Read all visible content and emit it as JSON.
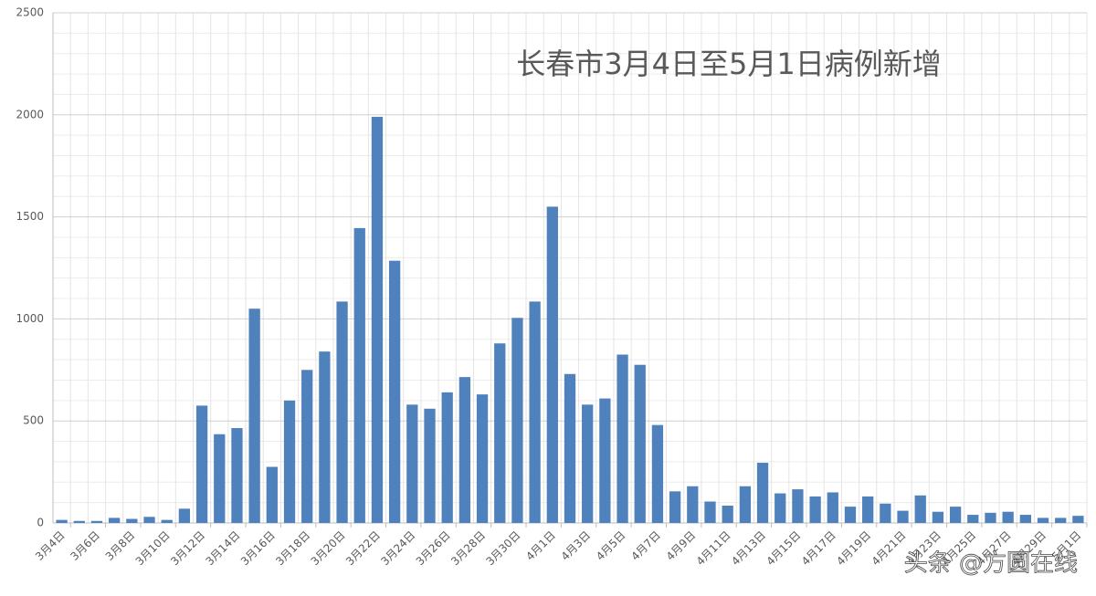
{
  "chart_data": {
    "type": "bar",
    "title": "长春市3月4日至5月1日病例新增",
    "watermark": "头条 @方圆在线",
    "categories": [
      "3月4日",
      null,
      "3月6日",
      null,
      "3月8日",
      null,
      "3月10日",
      null,
      "3月12日",
      null,
      "3月14日",
      null,
      "3月16日",
      null,
      "3月18日",
      null,
      "3月20日",
      null,
      "3月22日",
      null,
      "3月24日",
      null,
      "3月26日",
      null,
      "3月28日",
      null,
      "3月30日",
      null,
      "4月1日",
      null,
      "4月3日",
      null,
      "4月5日",
      null,
      "4月7日",
      null,
      "4月9日",
      null,
      "4月11日",
      null,
      "4月13日",
      null,
      "4月15日",
      null,
      "4月17日",
      null,
      "4月19日",
      null,
      "4月21日",
      null,
      "4月23日",
      null,
      "4月25日",
      null,
      "4月27日",
      null,
      "4月29日",
      null,
      "5月1日"
    ],
    "values": [
      15,
      10,
      10,
      25,
      20,
      30,
      15,
      70,
      575,
      435,
      465,
      1050,
      275,
      600,
      750,
      840,
      1085,
      1445,
      1990,
      1285,
      580,
      560,
      640,
      715,
      630,
      880,
      1005,
      1085,
      1550,
      730,
      580,
      610,
      825,
      775,
      480,
      155,
      180,
      105,
      85,
      180,
      295,
      145,
      165,
      130,
      150,
      80,
      130,
      95,
      60,
      135,
      55,
      80,
      40,
      50,
      55,
      40,
      25,
      25,
      35
    ],
    "color": "#4f81bd",
    "ylim": [
      0,
      2500
    ],
    "yticks": [
      0,
      500,
      1000,
      1500,
      2000,
      2500
    ],
    "grid": true,
    "minor_grid": true
  }
}
